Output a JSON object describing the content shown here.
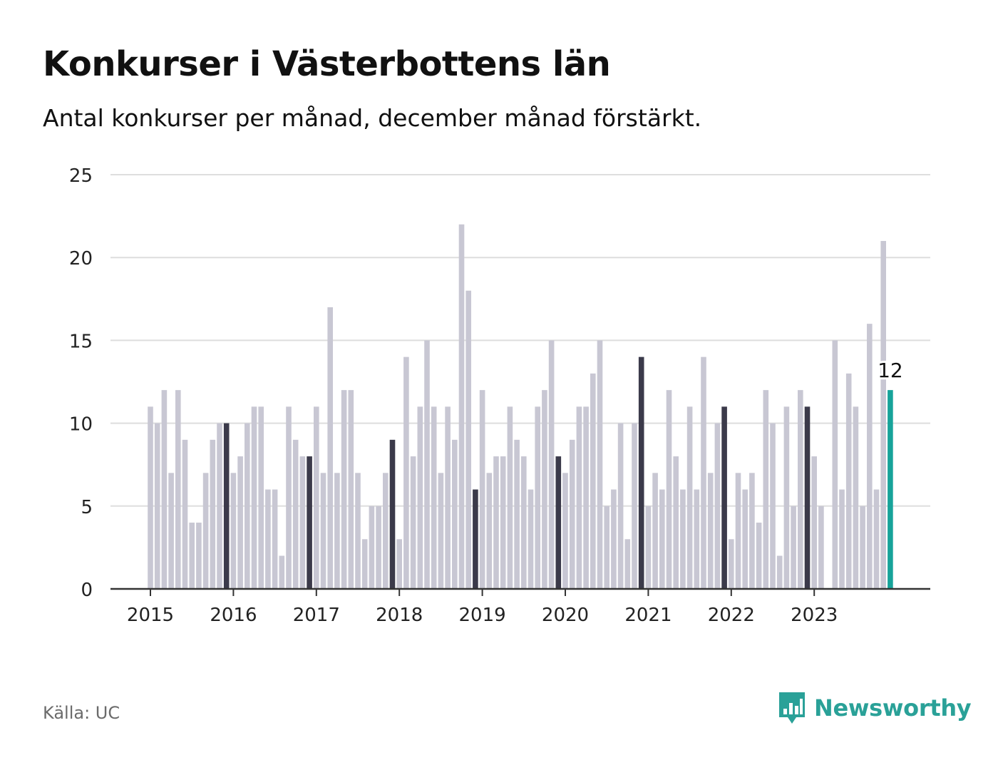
{
  "title": "Konkurser i Västerbottens län",
  "subtitle": "Antal konkurser per månad, december månad förstärkt.",
  "source": "Källa: UC",
  "brand": "Newsworthy",
  "colors": {
    "normal": "#c8c7d3",
    "december": "#3b3a4a",
    "latest": "#17a39a",
    "grid": "#dedede",
    "axis": "#333333",
    "brand": "#2aa198"
  },
  "chart_data": {
    "type": "bar",
    "start": "2015-01",
    "x_tick_labels": [
      "2015",
      "2016",
      "2017",
      "2018",
      "2019",
      "2020",
      "2021",
      "2022",
      "2023"
    ],
    "y_ticks": [
      0,
      5,
      10,
      15,
      20,
      25
    ],
    "ylim": [
      0,
      25
    ],
    "grid": true,
    "highlight": "december",
    "annotation": {
      "label": "12",
      "value": 12
    },
    "values": [
      11,
      10,
      12,
      7,
      12,
      9,
      4,
      4,
      7,
      9,
      10,
      10,
      7,
      8,
      10,
      11,
      11,
      6,
      6,
      2,
      11,
      9,
      8,
      8,
      11,
      7,
      17,
      7,
      12,
      12,
      7,
      3,
      5,
      5,
      7,
      9,
      3,
      14,
      8,
      11,
      15,
      11,
      7,
      11,
      9,
      22,
      18,
      6,
      12,
      7,
      8,
      8,
      11,
      9,
      8,
      6,
      11,
      12,
      15,
      8,
      7,
      9,
      11,
      11,
      13,
      15,
      5,
      6,
      10,
      3,
      10,
      14,
      5,
      7,
      6,
      12,
      8,
      6,
      11,
      6,
      14,
      7,
      10,
      11,
      3,
      7,
      6,
      7,
      4,
      12,
      10,
      2,
      11,
      5,
      12,
      11,
      8,
      5,
      0,
      15,
      6,
      13,
      11,
      5,
      16,
      6,
      21,
      12
    ]
  }
}
